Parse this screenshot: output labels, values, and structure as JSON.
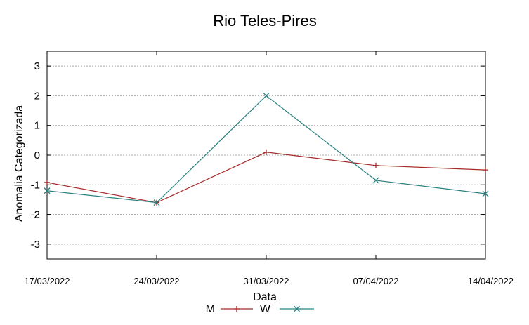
{
  "chart_data": {
    "type": "line",
    "title": "Rio Teles-Pires",
    "xlabel": "Data",
    "ylabel": "Anomalia Categorizada",
    "categories": [
      "17/03/2022",
      "24/03/2022",
      "31/03/2022",
      "07/04/2022",
      "14/04/2022"
    ],
    "ylim": [
      -3.5,
      3.5
    ],
    "yticks": [
      -3,
      -2,
      -1,
      0,
      1,
      2,
      3
    ],
    "grid": true,
    "legend": "bottom",
    "series": [
      {
        "name": "M",
        "marker": "plus",
        "color": "#a52a2a",
        "values": [
          -0.92,
          -1.6,
          0.1,
          -0.35,
          -0.5
        ]
      },
      {
        "name": "W",
        "marker": "x",
        "color": "#2a8080",
        "values": [
          -1.2,
          -1.6,
          2.0,
          -0.85,
          -1.3
        ]
      }
    ]
  }
}
